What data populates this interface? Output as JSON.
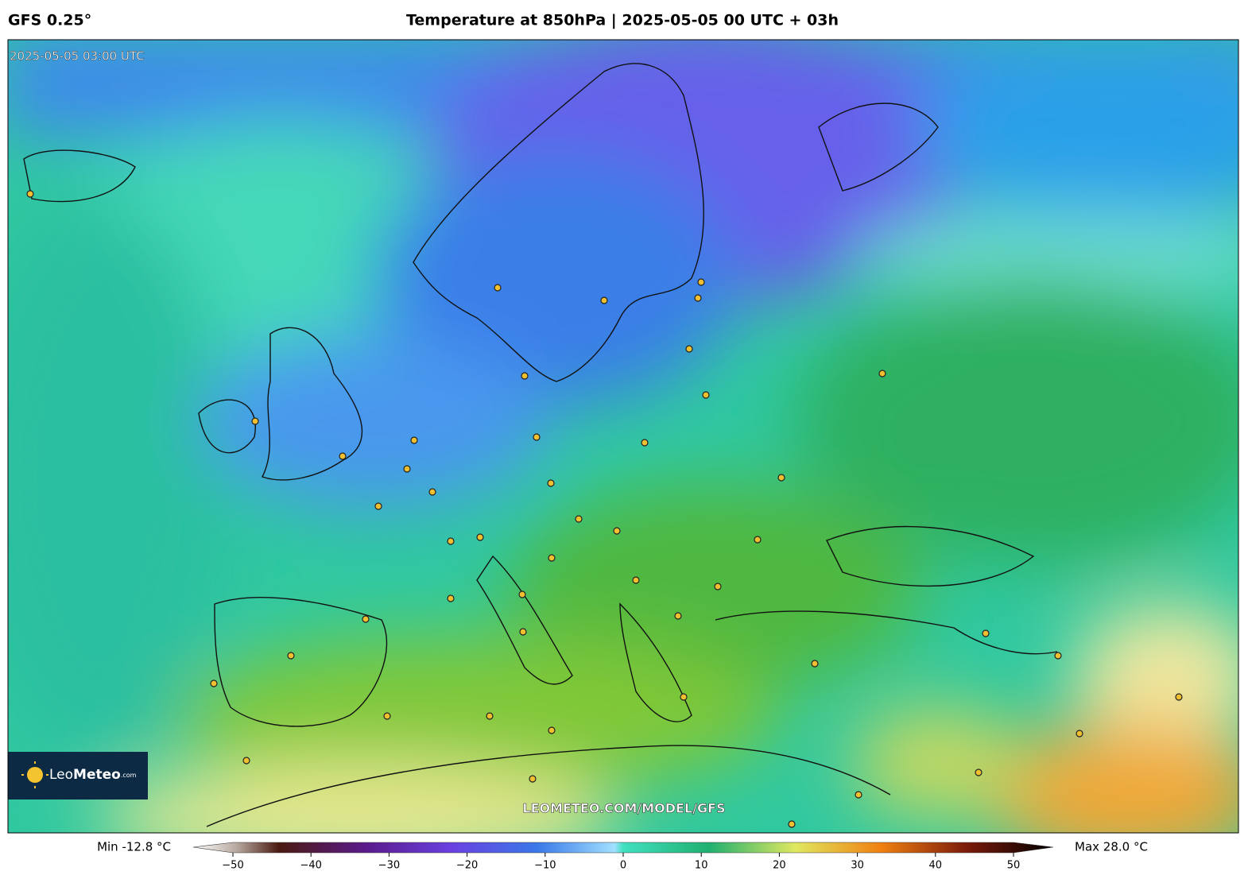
{
  "header": {
    "model": "GFS 0.25°",
    "title": "Temperature at 850hPa | 2025-05-05 00 UTC + 03h"
  },
  "map": {
    "timestamp": "2025-05-05 03:00 UTC",
    "watermark": "LEOMETEO.COM/MODEL/GFS",
    "logo": {
      "name_light": "Leo",
      "name_bold": "Meteo",
      "suffix": ".com"
    }
  },
  "colorbar": {
    "min_label": "Min -12.8 °C",
    "max_label": "Max 28.0 °C",
    "lim": [
      -50,
      50
    ],
    "ticks": [
      {
        "value": -50,
        "label": "−50"
      },
      {
        "value": -40,
        "label": "−40"
      },
      {
        "value": -30,
        "label": "−30"
      },
      {
        "value": -20,
        "label": "−20"
      },
      {
        "value": -10,
        "label": "−10"
      },
      0,
      10,
      20,
      30,
      40,
      50
    ]
  }
}
